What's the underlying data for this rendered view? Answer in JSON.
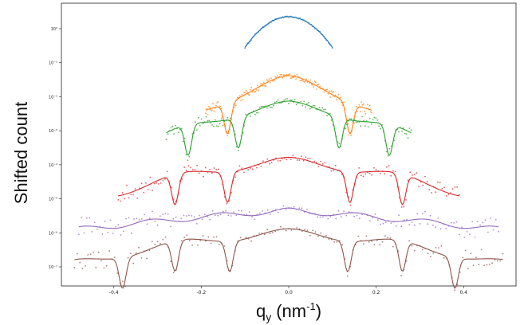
{
  "chart_data": {
    "type": "scatter",
    "title": "",
    "xlabel": "q",
    "xlabel_sub": "y",
    "xlabel_unit": "(nm",
    "xlabel_sup": "-1",
    "xlabel_close": ")",
    "ylabel": "Shifted count",
    "xlim": [
      -0.52,
      0.52
    ],
    "yscale": "log",
    "grid": false,
    "legend": "none",
    "x_ticks": [
      -0.4,
      -0.2,
      0.0,
      0.2,
      0.4
    ],
    "x_tick_labels": [
      "-0.4",
      "-0.2",
      "0.0",
      "0.2",
      "0.4"
    ],
    "y_tick_labels": [
      "10⁰",
      "10⁻¹",
      "10⁻²",
      "10⁻³",
      "10⁻⁴",
      "10⁻⁵",
      "10⁻⁶",
      "10⁻⁷"
    ],
    "y_tick_exponents": [
      0,
      -1,
      -2,
      -3,
      -4,
      -5,
      -6,
      -7
    ],
    "series": [
      {
        "color": "#1f77b4",
        "range": [
          -0.1,
          0.1
        ],
        "peak_log": 0.35,
        "nodes": [],
        "style": "curve"
      },
      {
        "color": "#ff7f0e",
        "range": [
          -0.19,
          0.19
        ],
        "peak_log": -1.5,
        "nodes": [
          -0.14,
          0.14
        ],
        "style": "fringe"
      },
      {
        "color": "#2ca02c",
        "range": [
          -0.28,
          0.28
        ],
        "peak_log": -2.25,
        "nodes": [
          -0.115,
          0.115,
          -0.23,
          0.23
        ],
        "style": "fringe"
      },
      {
        "color": "#d62728",
        "range": [
          -0.39,
          0.39
        ],
        "peak_log": -3.9,
        "nodes": [
          -0.14,
          0.14,
          -0.26,
          0.26
        ],
        "style": "fringe"
      },
      {
        "color": "#9467bd",
        "range": [
          -0.48,
          0.48
        ],
        "peak_log": -5.35,
        "nodes": [],
        "style": "flat"
      },
      {
        "color": "#8c564b",
        "range": [
          -0.49,
          0.49
        ],
        "peak_log": -6.0,
        "nodes": [
          -0.135,
          0.135,
          -0.26,
          0.26,
          -0.38,
          0.38
        ],
        "style": "fringe"
      }
    ]
  }
}
